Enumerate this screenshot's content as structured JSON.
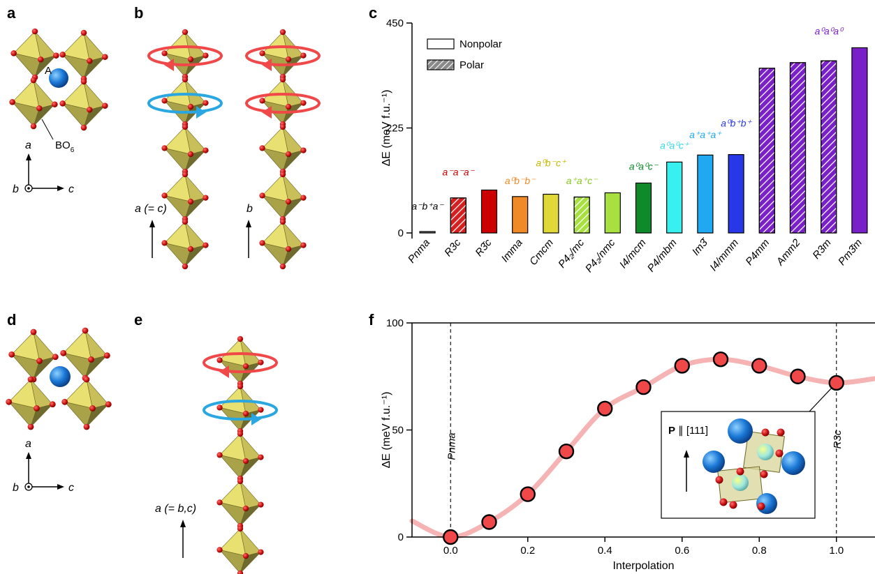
{
  "panels": {
    "a": "a",
    "b": "b",
    "c": "c",
    "d": "d",
    "e": "e",
    "f": "f"
  },
  "panel_a": {
    "site_label": "A",
    "octa_label": "BO",
    "octa_sub": "6",
    "axis_up": "a",
    "axis_in": "b",
    "axis_right": "c"
  },
  "panel_b": {
    "axis_left": "a (= c)",
    "axis_right": "b"
  },
  "panel_d": {
    "axis_up": "a",
    "axis_in": "b",
    "axis_right": "c"
  },
  "panel_e": {
    "axis": "a (= b,c)"
  },
  "colors": {
    "octahedron": "#c8be5a",
    "oxygen": "#cc1111",
    "a_site": "#1a78d6",
    "rot_red": "#f04848",
    "rot_blue": "#2aa7e0",
    "curve": "#f6b3b3"
  },
  "chart_data": [
    {
      "type": "bar",
      "panel": "c",
      "ylabel": "ΔE (meV f.u.⁻¹)",
      "ylim": [
        0,
        450
      ],
      "yticks": [
        0,
        225,
        450
      ],
      "legend": [
        {
          "label": "Nonpolar",
          "pattern": "solid"
        },
        {
          "label": "Polar",
          "pattern": "hatched"
        }
      ],
      "legend_position": "top-left",
      "categories": [
        "Pnma",
        "R3c",
        "R3̄c",
        "Imma",
        "Cmcm",
        "P4₂/mc",
        "P4₂/nmc",
        "I4/mcm",
        "P4/mbm",
        "Im3̄",
        "I4/mmm",
        "P4mm",
        "Amm2",
        "R3m",
        "Pm3̄m"
      ],
      "values": [
        3,
        75,
        92,
        78,
        83,
        77,
        86,
        107,
        152,
        167,
        168,
        353,
        365,
        369,
        397
      ],
      "polar": [
        false,
        true,
        false,
        false,
        false,
        true,
        false,
        false,
        false,
        false,
        false,
        true,
        true,
        true,
        false
      ],
      "colors": [
        "#7a7a7a",
        "#d42020",
        "#cc0000",
        "#f08a28",
        "#e0d838",
        "#a8e040",
        "#a8e040",
        "#0f8a2a",
        "#38f0f0",
        "#20a8f0",
        "#2838e8",
        "#7a20c8",
        "#7a20c8",
        "#7a20c8",
        "#7a20c8"
      ],
      "annotations": [
        {
          "text": "a⁻b⁺a⁻",
          "category": "Pnma",
          "value": 50,
          "color": "#000000"
        },
        {
          "text": "a⁻a⁻a⁻",
          "category": "R3c",
          "value": 123,
          "color": "#cc0000"
        },
        {
          "text": "a⁰b⁻b⁻",
          "category": "Imma",
          "value": 105,
          "color": "#f08a28"
        },
        {
          "text": "a⁰b⁻c⁺",
          "category": "Cmcm",
          "value": 143,
          "color": "#c8b800"
        },
        {
          "text": "a⁺a⁺c⁻",
          "category": "P4₂/mc",
          "value": 105,
          "color": "#88c820"
        },
        {
          "text": "a⁰a⁰c⁻",
          "category": "I4/mcm",
          "value": 135,
          "color": "#0f8a2a"
        },
        {
          "text": "a⁰a⁰c⁺",
          "category": "P4/mbm",
          "value": 180,
          "color": "#38d8e8"
        },
        {
          "text": "a⁺a⁺a⁺",
          "category": "Im3̄",
          "value": 203,
          "color": "#20a8f0"
        },
        {
          "text": "a⁰b⁺b⁺",
          "category": "I4/mmm",
          "value": 228,
          "color": "#2838e8"
        },
        {
          "text": "a⁰a⁰a⁰",
          "category": "R3m",
          "value": 425,
          "color": "#7a20c8"
        }
      ]
    },
    {
      "type": "scatter",
      "panel": "f",
      "xlabel": "Interpolation",
      "ylabel": "ΔE (meV f.u.⁻¹)",
      "xlim": [
        -0.1,
        1.1
      ],
      "ylim": [
        0,
        100
      ],
      "xticks": [
        0.0,
        0.2,
        0.4,
        0.6,
        0.8,
        1.0
      ],
      "xticklabels": [
        "0.0",
        "0.2",
        "0.4",
        "0.6",
        "0.8",
        "1.0"
      ],
      "yticks": [
        0,
        50,
        100
      ],
      "x": [
        0.0,
        0.1,
        0.2,
        0.3,
        0.4,
        0.5,
        0.6,
        0.7,
        0.8,
        0.9,
        1.0
      ],
      "y": [
        0,
        7,
        20,
        40,
        60,
        70,
        80,
        83,
        80,
        75,
        72
      ],
      "vlines": [
        {
          "x": 0.0,
          "label": "Pnma"
        },
        {
          "x": 1.0,
          "label": "R3c"
        }
      ],
      "inset": {
        "label_bold": "P",
        "label_rest": " ∥ [111]"
      }
    }
  ]
}
